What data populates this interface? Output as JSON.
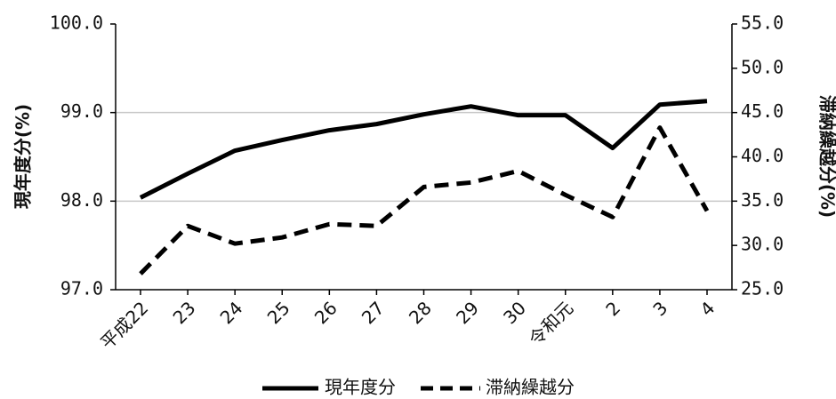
{
  "chart_data": {
    "type": "line",
    "categories": [
      "平成22",
      "23",
      "24",
      "25",
      "26",
      "27",
      "28",
      "29",
      "30",
      "令和元",
      "2",
      "3",
      "4"
    ],
    "series": [
      {
        "name": "現年度分",
        "axis": "left",
        "style": "solid",
        "color": "#000000",
        "values": [
          98.04,
          98.31,
          98.57,
          98.69,
          98.8,
          98.87,
          98.98,
          99.07,
          98.97,
          98.97,
          98.6,
          99.09,
          99.13
        ]
      },
      {
        "name": "滞納繰越分",
        "axis": "right",
        "style": "dashed",
        "color": "#000000",
        "values": [
          26.8,
          32.2,
          30.2,
          30.9,
          32.4,
          32.2,
          36.6,
          37.1,
          38.4,
          35.7,
          33.2,
          43.3,
          33.9
        ]
      }
    ],
    "y_left": {
      "label": "現年度分(%)",
      "ylim": [
        97.0,
        100.0
      ],
      "ticks": [
        "97.0",
        "98.0",
        "99.0",
        "100.0"
      ]
    },
    "y_right": {
      "label": "滞納繰越分(%)",
      "ylim": [
        25.0,
        55.0
      ],
      "ticks": [
        "25.0",
        "30.0",
        "35.0",
        "40.0",
        "45.0",
        "50.0",
        "55.0"
      ]
    },
    "grid": true,
    "legend_position": "bottom-center"
  }
}
